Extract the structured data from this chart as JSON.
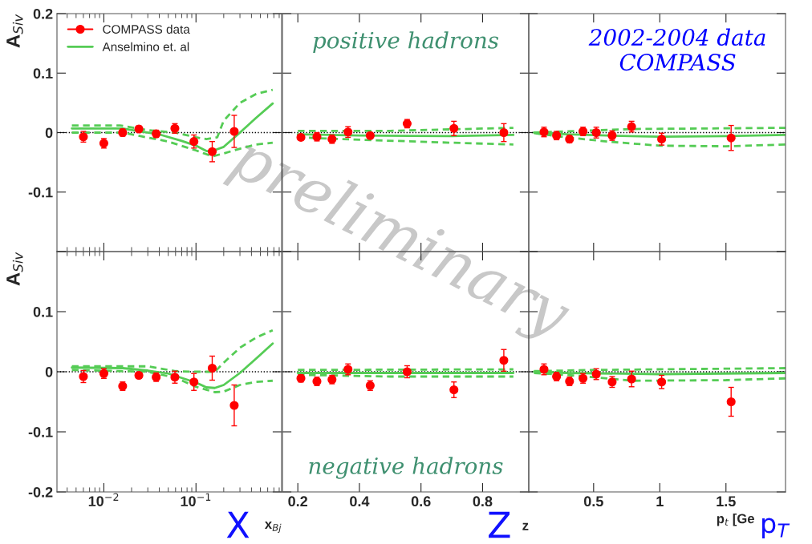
{
  "chart_data": [
    {
      "type": "line",
      "ylabel": "A$_{Siv}$",
      "log": "x",
      "xlim": [
        0.0031,
        0.85
      ],
      "ylim": [
        -0.2,
        0.2
      ],
      "yticks": [
        0.2,
        0.1,
        0,
        -0.1,
        {
          "value": -0.2,
          "label": null
        }
      ],
      "tick_labels": "y",
      "legend": "top left",
      "annotations": [
        "preliminary"
      ],
      "ref_lines": [
        {
          "axis": "y",
          "value": 0,
          "color": "#000000",
          "line_style": "dotted"
        }
      ],
      "series": [
        {
          "name": "COMPASS data",
          "type": "scatter",
          "marker": "circle",
          "color": "#ff0000",
          "x": [
            0.006,
            0.01,
            0.016,
            0.024,
            0.037,
            0.059,
            0.095,
            0.15,
            0.26
          ],
          "values": [
            -0.007,
            -0.018,
            0,
            0.006,
            -0.002,
            0.007,
            -0.015,
            -0.032,
            0.002
          ],
          "errors": [
            0.009,
            0.008,
            0.006,
            0.005,
            0.006,
            0.008,
            0.011,
            0.017,
            0.027
          ]
        },
        {
          "name": "Anselmino et. al",
          "type": "line",
          "line_style": "solid",
          "color": "#55cc55",
          "x": [
            0.0045,
            0.016,
            0.025,
            0.04,
            0.07,
            0.1,
            0.13,
            0.15,
            0.2,
            0.3,
            0.45,
            0.68
          ],
          "values": [
            0.007,
            0.007,
            0.002,
            -0.003,
            -0.014,
            -0.022,
            -0.031,
            -0.031,
            -0.024,
            0.0,
            0.025,
            0.049
          ]
        },
        {
          "type": "line",
          "line_style": "dashed",
          "color": "#55cc55",
          "x": [
            0.0045,
            0.015,
            0.03,
            0.06,
            0.1,
            0.13,
            0.17,
            0.2,
            0.3,
            0.45,
            0.68
          ],
          "values": [
            0.012,
            0.012,
            0.004,
            0.0,
            -0.008,
            -0.011,
            -0.008,
            0.02,
            0.05,
            0.065,
            0.072
          ]
        },
        {
          "type": "line",
          "line_style": "dashed",
          "color": "#55cc55",
          "x": [
            0.0045,
            0.016,
            0.025,
            0.05,
            0.1,
            0.15,
            0.2,
            0.3,
            0.45,
            0.68
          ],
          "values": [
            0.0,
            0.0,
            -0.006,
            -0.015,
            -0.03,
            -0.04,
            -0.035,
            -0.027,
            -0.02,
            -0.017
          ]
        }
      ]
    },
    {
      "type": "line",
      "xlim": [
        0.15,
        0.95
      ],
      "xticks": [
        0.2,
        0.4,
        0.6,
        0.8
      ],
      "ylim": [
        -0.2,
        0.2
      ],
      "yticks": [
        0.2,
        0.1,
        0,
        -0.1,
        -0.2
      ],
      "tick_labels": false,
      "annotations": [
        "positive hadrons"
      ],
      "ref_lines": [
        {
          "axis": "y",
          "value": 0,
          "color": "#000000",
          "line_style": "dotted"
        }
      ],
      "series": [
        {
          "type": "scatter",
          "marker": "circle",
          "color": "#ff0000",
          "x": [
            0.21,
            0.262,
            0.311,
            0.363,
            0.435,
            0.555,
            0.707,
            0.869
          ],
          "values": [
            -0.008,
            -0.007,
            -0.011,
            0.001,
            -0.005,
            0.015,
            0.007,
            0
          ],
          "errors": [
            0.005,
            0.007,
            0.007,
            0.009,
            0.005,
            0.007,
            0.012,
            0.015
          ]
        },
        {
          "type": "line",
          "line_style": "solid",
          "color": "#55cc55",
          "x": [
            0.2,
            0.4,
            0.7,
            0.9
          ],
          "values": [
            -0.003,
            -0.005,
            -0.006,
            -0.004
          ]
        },
        {
          "type": "line",
          "line_style": "dashed",
          "color": "#55cc55",
          "x": [
            0.2,
            0.5,
            0.9
          ],
          "values": [
            0.003,
            0.003,
            0.008
          ]
        },
        {
          "type": "line",
          "line_style": "dashed",
          "color": "#55cc55",
          "x": [
            0.2,
            0.4,
            0.7,
            0.9
          ],
          "values": [
            -0.008,
            -0.012,
            -0.017,
            -0.02
          ]
        }
      ]
    },
    {
      "type": "line",
      "xlim": [
        0.01,
        1.95
      ],
      "xticks": [
        0.5,
        1,
        1.5
      ],
      "ylim": [
        -0.2,
        0.2
      ],
      "yticks": [
        0.2,
        0.1,
        0,
        -0.1,
        -0.2
      ],
      "tick_labels": false,
      "annotations": [
        "2002-2004 data\nCOMPASS"
      ],
      "ref_lines": [
        {
          "axis": "y",
          "value": 0,
          "color": "#000000",
          "line_style": "dotted"
        }
      ],
      "series": [
        {
          "type": "scatter",
          "marker": "circle",
          "color": "#ff0000",
          "x": [
            0.125,
            0.22,
            0.318,
            0.42,
            0.52,
            0.64,
            0.787,
            1.014,
            1.539
          ],
          "values": [
            0.001,
            -0.005,
            -0.011,
            0.002,
            0,
            -0.005,
            0.01,
            -0.011,
            -0.009
          ],
          "errors": [
            0.008,
            0.007,
            0.006,
            0.007,
            0.009,
            0.008,
            0.009,
            0.01,
            0.021
          ]
        },
        {
          "type": "line",
          "line_style": "solid",
          "color": "#55cc55",
          "x": [
            0.05,
            0.3,
            0.6,
            1,
            1.5,
            1.95
          ],
          "values": [
            0,
            -0.003,
            -0.005,
            -0.007,
            -0.006,
            -0.004
          ]
        },
        {
          "type": "line",
          "line_style": "dashed",
          "color": "#55cc55",
          "x": [
            0.05,
            0.3,
            0.8,
            1.95
          ],
          "values": [
            0,
            0.002,
            0.006,
            0.008
          ]
        },
        {
          "type": "line",
          "line_style": "dashed",
          "color": "#55cc55",
          "x": [
            0.05,
            0.3,
            0.6,
            1,
            1.5,
            1.95
          ],
          "values": [
            -0.001,
            -0.008,
            -0.015,
            -0.022,
            -0.023,
            -0.02
          ]
        }
      ]
    },
    {
      "type": "line",
      "ylabel": "A$_{Siv}$",
      "xlabel": "x$_{Bj}$",
      "log": "x",
      "xlim": [
        0.0031,
        0.85
      ],
      "xticks": [
        {
          "value": 0.01,
          "label": "10$^{−2}$"
        },
        {
          "value": 0.1,
          "label": "10$^{−1}$"
        }
      ],
      "ylim": [
        -0.2,
        0.2
      ],
      "yticks": [
        {
          "value": 0.2,
          "label": null
        },
        0.1,
        0,
        -0.1,
        -0.2
      ],
      "annotations": [
        "X"
      ],
      "ref_lines": [
        {
          "axis": "y",
          "value": 0,
          "color": "#000000",
          "line_style": "dotted"
        }
      ],
      "series": [
        {
          "type": "scatter",
          "marker": "circle",
          "color": "#ff0000",
          "x": [
            0.006,
            0.01,
            0.016,
            0.024,
            0.037,
            0.059,
            0.095,
            0.15,
            0.26
          ],
          "values": [
            -0.008,
            -0.003,
            -0.024,
            -0.006,
            -0.009,
            -0.009,
            -0.017,
            0.006,
            -0.056
          ],
          "errors": [
            0.01,
            0.008,
            0.007,
            0.005,
            0.007,
            0.01,
            0.014,
            0.02,
            0.034
          ]
        },
        {
          "type": "line",
          "line_style": "solid",
          "color": "#55cc55",
          "x": [
            0.0045,
            0.016,
            0.03,
            0.05,
            0.1,
            0.13,
            0.16,
            0.2,
            0.3,
            0.45,
            0.68
          ],
          "values": [
            0.007,
            0.006,
            0.002,
            -0.003,
            -0.018,
            -0.026,
            -0.027,
            -0.022,
            -0.002,
            0.022,
            0.047
          ]
        },
        {
          "type": "line",
          "line_style": "dashed",
          "color": "#55cc55",
          "x": [
            0.0045,
            0.03,
            0.06,
            0.1,
            0.16,
            0.2,
            0.3,
            0.45,
            0.68
          ],
          "values": [
            0.009,
            0.009,
            0.001,
            0.0,
            0.0,
            0.015,
            0.04,
            0.057,
            0.069
          ]
        },
        {
          "type": "line",
          "line_style": "dashed",
          "color": "#55cc55",
          "x": [
            0.0045,
            0.03,
            0.06,
            0.1,
            0.16,
            0.2,
            0.3,
            0.45,
            0.68
          ],
          "values": [
            0.003,
            0.0,
            -0.01,
            -0.025,
            -0.034,
            -0.033,
            -0.022,
            -0.017,
            -0.015
          ]
        }
      ]
    },
    {
      "type": "line",
      "xlabel": "z",
      "xlim": [
        0.15,
        0.95
      ],
      "xticks": [
        0.2,
        0.4,
        0.6,
        0.8
      ],
      "ylim": [
        -0.2,
        0.2
      ],
      "yticks": [
        0.2,
        0.1,
        0,
        -0.1,
        -0.2
      ],
      "tick_labels": "x",
      "annotations": [
        "negative hadrons",
        "Z"
      ],
      "ref_lines": [
        {
          "axis": "y",
          "value": 0,
          "color": "#000000",
          "line_style": "dotted"
        }
      ],
      "series": [
        {
          "type": "scatter",
          "marker": "circle",
          "color": "#ff0000",
          "x": [
            0.21,
            0.262,
            0.311,
            0.363,
            0.435,
            0.555,
            0.707,
            0.869
          ],
          "values": [
            -0.011,
            -0.016,
            -0.013,
            0.004,
            -0.023,
            0,
            -0.03,
            0.019
          ],
          "errors": [
            0.006,
            0.007,
            0.007,
            0.009,
            0.008,
            0.01,
            0.013,
            0.018
          ]
        },
        {
          "type": "line",
          "line_style": "solid",
          "color": "#55cc55",
          "x": [
            0.2,
            0.9
          ],
          "values": [
            -0.002,
            -0.002
          ]
        },
        {
          "type": "line",
          "line_style": "dashed",
          "color": "#55cc55",
          "x": [
            0.2,
            0.9
          ],
          "values": [
            0.003,
            0.004
          ]
        },
        {
          "type": "line",
          "line_style": "dashed",
          "color": "#55cc55",
          "x": [
            0.2,
            0.5,
            0.9
          ],
          "values": [
            -0.005,
            -0.008,
            -0.008
          ]
        }
      ]
    },
    {
      "type": "line",
      "xlabel": "p$_{t}$ [Ge",
      "xlim": [
        0.01,
        1.95
      ],
      "xticks": [
        0.5,
        1,
        1.5
      ],
      "ylim": [
        -0.2,
        0.2
      ],
      "yticks": [
        0.2,
        0.1,
        0,
        -0.1,
        -0.2
      ],
      "tick_labels": "x",
      "annotations": [
        "p$_{T}$"
      ],
      "ref_lines": [
        {
          "axis": "y",
          "value": 0,
          "color": "#000000",
          "line_style": "dotted"
        }
      ],
      "series": [
        {
          "type": "scatter",
          "marker": "circle",
          "color": "#ff0000",
          "x": [
            0.125,
            0.22,
            0.318,
            0.42,
            0.52,
            0.64,
            0.787,
            1.014,
            1.539
          ],
          "values": [
            0.004,
            -0.008,
            -0.016,
            -0.011,
            -0.004,
            -0.017,
            -0.012,
            -0.017,
            -0.05
          ],
          "errors": [
            0.009,
            0.007,
            0.007,
            0.008,
            0.009,
            0.009,
            0.013,
            0.011,
            0.024
          ]
        },
        {
          "type": "line",
          "line_style": "solid",
          "color": "#55cc55",
          "x": [
            0.05,
            0.3,
            1,
            1.95
          ],
          "values": [
            0,
            -0.002,
            -0.004,
            -0.002
          ]
        },
        {
          "type": "line",
          "line_style": "dashed",
          "color": "#55cc55",
          "x": [
            0.05,
            0.5,
            1.95
          ],
          "values": [
            0.001,
            0.003,
            0.006
          ]
        },
        {
          "type": "line",
          "line_style": "dashed",
          "color": "#55cc55",
          "x": [
            0.05,
            0.4,
            0.8,
            1.5,
            1.95
          ],
          "values": [
            -0.002,
            -0.007,
            -0.015,
            -0.014,
            -0.011
          ]
        }
      ]
    }
  ]
}
